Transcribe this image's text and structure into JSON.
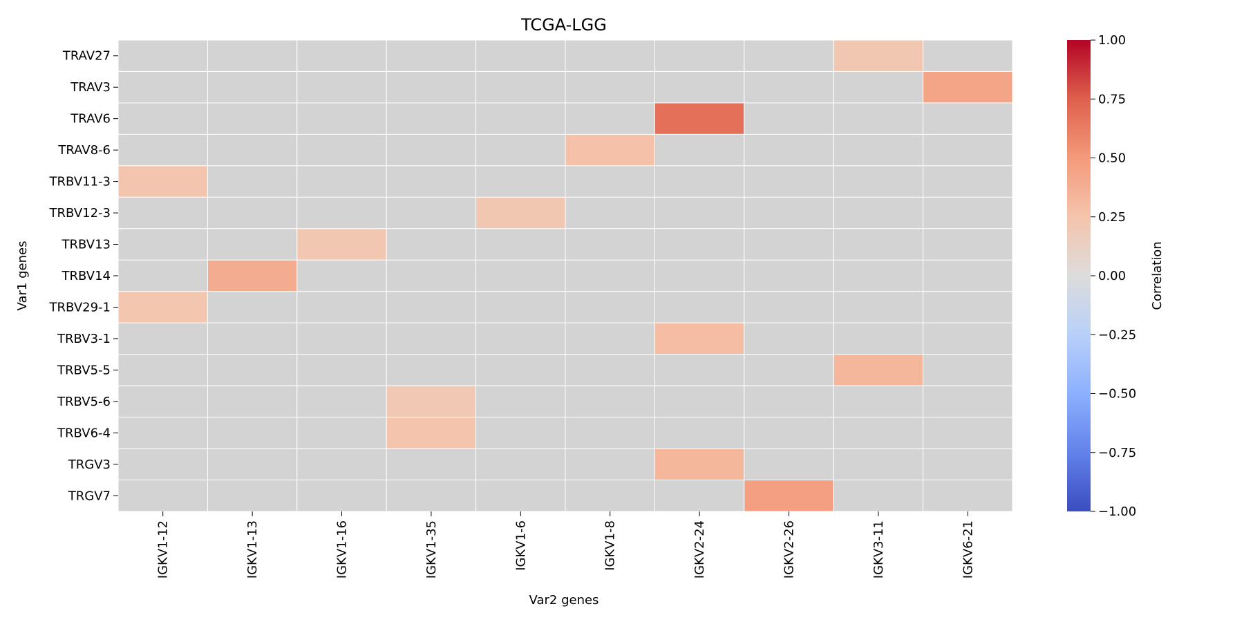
{
  "chart_data": {
    "type": "heatmap",
    "title": "TCGA-LGG",
    "xlabel": "Var2 genes",
    "ylabel": "Var1 genes",
    "x_categories": [
      "IGKV1-12",
      "IGKV1-13",
      "IGKV1-16",
      "IGKV1-35",
      "IGKV1-6",
      "IGKV1-8",
      "IGKV2-24",
      "IGKV2-26",
      "IGKV3-11",
      "IGKV6-21"
    ],
    "y_categories": [
      "TRAV27",
      "TRAV3",
      "TRAV6",
      "TRAV8-6",
      "TRBV11-3",
      "TRBV12-3",
      "TRBV13",
      "TRBV14",
      "TRBV29-1",
      "TRBV3-1",
      "TRBV5-5",
      "TRBV5-6",
      "TRBV6-4",
      "TRGV3",
      "TRGV7"
    ],
    "values": [
      [
        null,
        null,
        null,
        null,
        null,
        null,
        null,
        null,
        0.22,
        null
      ],
      [
        null,
        null,
        null,
        null,
        null,
        null,
        null,
        null,
        null,
        0.44
      ],
      [
        null,
        null,
        null,
        null,
        null,
        null,
        0.68,
        null,
        null,
        null
      ],
      [
        null,
        null,
        null,
        null,
        null,
        0.27,
        null,
        null,
        null,
        null
      ],
      [
        0.24,
        null,
        null,
        null,
        null,
        null,
        null,
        null,
        null,
        null
      ],
      [
        null,
        null,
        null,
        null,
        0.22,
        null,
        null,
        null,
        null,
        null
      ],
      [
        null,
        null,
        0.22,
        null,
        null,
        null,
        null,
        null,
        null,
        null
      ],
      [
        null,
        0.39,
        null,
        null,
        null,
        null,
        null,
        null,
        null,
        null
      ],
      [
        0.23,
        null,
        null,
        null,
        null,
        null,
        null,
        null,
        null,
        null
      ],
      [
        null,
        null,
        null,
        null,
        null,
        null,
        0.29,
        null,
        null,
        null
      ],
      [
        null,
        null,
        null,
        null,
        null,
        null,
        null,
        null,
        0.33,
        null
      ],
      [
        null,
        null,
        null,
        0.21,
        null,
        null,
        null,
        null,
        null,
        null
      ],
      [
        null,
        null,
        null,
        0.25,
        null,
        null,
        null,
        null,
        null,
        null
      ],
      [
        null,
        null,
        null,
        null,
        null,
        null,
        0.33,
        null,
        null,
        null
      ],
      [
        null,
        null,
        null,
        null,
        null,
        null,
        null,
        0.47,
        null,
        null
      ]
    ],
    "missing_color": "#d3d3d3",
    "colormap": "coolwarm",
    "colorbar": {
      "label": "Correlation",
      "range": [
        -1.0,
        1.0
      ],
      "ticks": [
        1.0,
        0.75,
        0.5,
        0.25,
        0.0,
        -0.25,
        -0.5,
        -0.75,
        -1.0
      ],
      "tick_labels": [
        "1.00",
        "0.75",
        "0.50",
        "0.25",
        "0.00",
        "−0.25",
        "−0.50",
        "−0.75",
        "−1.00"
      ]
    }
  }
}
